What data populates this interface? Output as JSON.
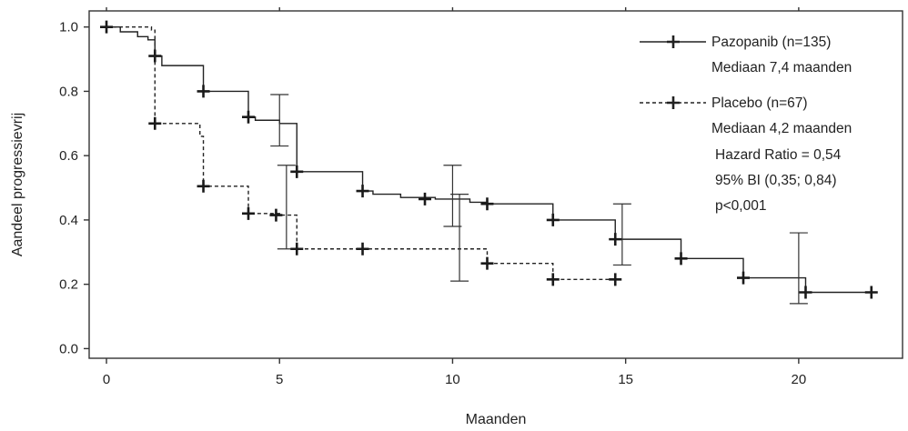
{
  "chart_data": {
    "type": "line",
    "title": "",
    "xlabel": "Maanden",
    "ylabel": "Aandeel progressievrij",
    "xlim": [
      -0.5,
      23
    ],
    "ylim": [
      -0.03,
      1.05
    ],
    "xticks": [
      0,
      5,
      10,
      15,
      20
    ],
    "xtick_labels": [
      "0",
      "5",
      "10",
      "15",
      "20"
    ],
    "yticks": [
      0.0,
      0.2,
      0.4,
      0.6,
      0.8,
      1.0
    ],
    "ytick_labels": [
      "0.0",
      "0.2",
      "0.4",
      "0.6",
      "0.8",
      "1.0"
    ],
    "grid": false,
    "legend_position": "top-right",
    "series": [
      {
        "name": "Pazopanib (n=135)",
        "line_style": "solid",
        "color": "#222222",
        "step_x": [
          0,
          0.4,
          0.9,
          1.2,
          1.4,
          1.6,
          2.8,
          4.1,
          4.3,
          5.0,
          5.5,
          7.4,
          7.7,
          8.5,
          9.5,
          10.5,
          11.0,
          12.9,
          14.7,
          16.6,
          18.4,
          20.2,
          22.1
        ],
        "step_y": [
          1.0,
          0.985,
          0.97,
          0.96,
          0.91,
          0.88,
          0.8,
          0.72,
          0.71,
          0.7,
          0.55,
          0.49,
          0.48,
          0.47,
          0.465,
          0.455,
          0.45,
          0.4,
          0.34,
          0.28,
          0.22,
          0.175,
          0.175
        ],
        "censored_x": [
          0,
          1.4,
          2.8,
          4.1,
          5.5,
          7.4,
          9.2,
          11.0,
          12.9,
          14.7,
          16.6,
          18.4,
          20.2,
          22.1
        ],
        "censored_y": [
          1.0,
          0.91,
          0.8,
          0.72,
          0.55,
          0.49,
          0.465,
          0.45,
          0.4,
          0.34,
          0.28,
          0.22,
          0.175,
          0.175
        ],
        "error_bars": [
          {
            "x": 5.0,
            "low": 0.63,
            "high": 0.79
          },
          {
            "x": 10.0,
            "low": 0.38,
            "high": 0.57
          },
          {
            "x": 14.9,
            "low": 0.26,
            "high": 0.45
          },
          {
            "x": 20.0,
            "low": 0.14,
            "high": 0.36
          }
        ],
        "median_label": "Mediaan 7,4 maanden"
      },
      {
        "name": "Placebo (n=67)",
        "line_style": "dashed",
        "color": "#222222",
        "step_x": [
          0,
          1.3,
          1.4,
          2.7,
          2.8,
          4.1,
          5.0,
          5.5,
          10.9,
          11.0,
          12.9,
          14.7
        ],
        "step_y": [
          1.0,
          0.99,
          0.7,
          0.66,
          0.505,
          0.42,
          0.415,
          0.31,
          0.31,
          0.265,
          0.215,
          0.215
        ],
        "censored_x": [
          1.4,
          2.8,
          4.1,
          4.9,
          5.5,
          7.4,
          11.0,
          12.9,
          14.7
        ],
        "censored_y": [
          0.7,
          0.505,
          0.42,
          0.415,
          0.31,
          0.31,
          0.265,
          0.215,
          0.215
        ],
        "error_bars": [
          {
            "x": 5.2,
            "low": 0.31,
            "high": 0.57
          },
          {
            "x": 10.2,
            "low": 0.21,
            "high": 0.48
          }
        ],
        "median_label": "Mediaan 4,2 maanden"
      }
    ],
    "annotations": [
      "Hazard Ratio = 0,54",
      "95% BI (0,35; 0,84)",
      "p<0,001"
    ]
  }
}
